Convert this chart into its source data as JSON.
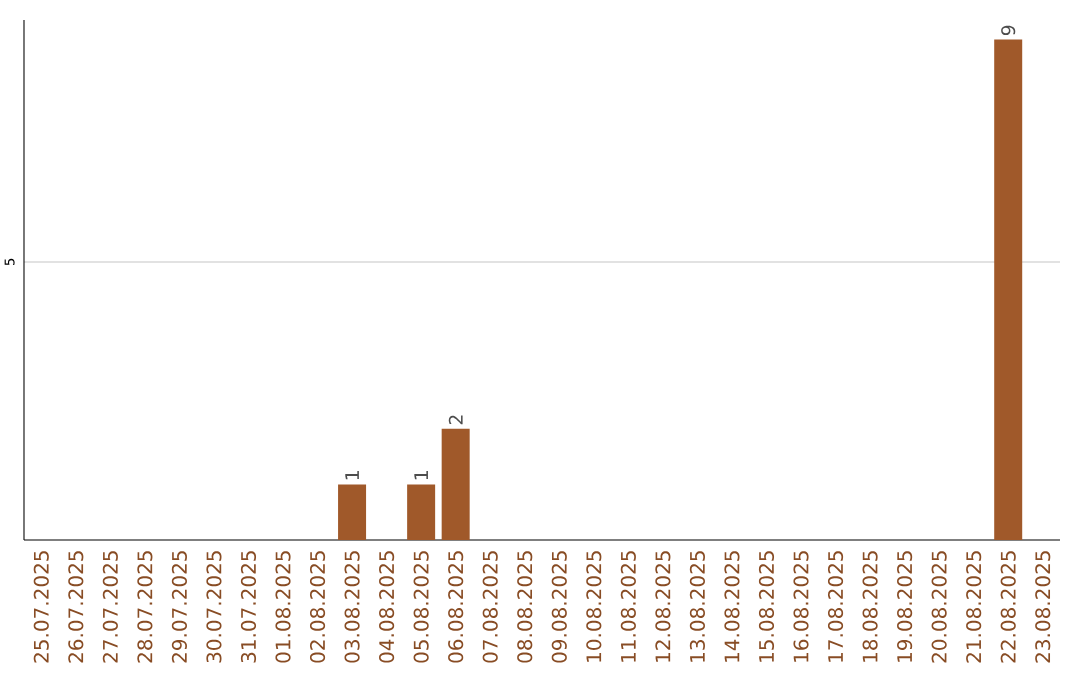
{
  "chart_data": {
    "type": "bar",
    "categories": [
      "25.07.2025",
      "26.07.2025",
      "27.07.2025",
      "28.07.2025",
      "29.07.2025",
      "30.07.2025",
      "31.07.2025",
      "01.08.2025",
      "02.08.2025",
      "03.08.2025",
      "04.08.2025",
      "05.08.2025",
      "06.08.2025",
      "07.08.2025",
      "08.08.2025",
      "09.08.2025",
      "10.08.2025",
      "11.08.2025",
      "12.08.2025",
      "13.08.2025",
      "14.08.2025",
      "15.08.2025",
      "16.08.2025",
      "17.08.2025",
      "18.08.2025",
      "19.08.2025",
      "20.08.2025",
      "21.08.2025",
      "22.08.2025",
      "23.08.2025"
    ],
    "values": [
      0,
      0,
      0,
      0,
      0,
      0,
      0,
      0,
      0,
      1,
      0,
      1,
      2,
      0,
      0,
      0,
      0,
      0,
      0,
      0,
      0,
      0,
      0,
      0,
      0,
      0,
      0,
      0,
      9,
      0
    ],
    "value_labels": [
      null,
      null,
      null,
      null,
      null,
      null,
      null,
      null,
      null,
      "1",
      null,
      "1",
      "2",
      null,
      null,
      null,
      null,
      null,
      null,
      null,
      null,
      null,
      null,
      null,
      null,
      null,
      null,
      null,
      "9",
      null
    ],
    "color": "#a0592a",
    "ylim": [
      0,
      9.35
    ],
    "yticks": [
      5
    ],
    "grid": "y"
  }
}
